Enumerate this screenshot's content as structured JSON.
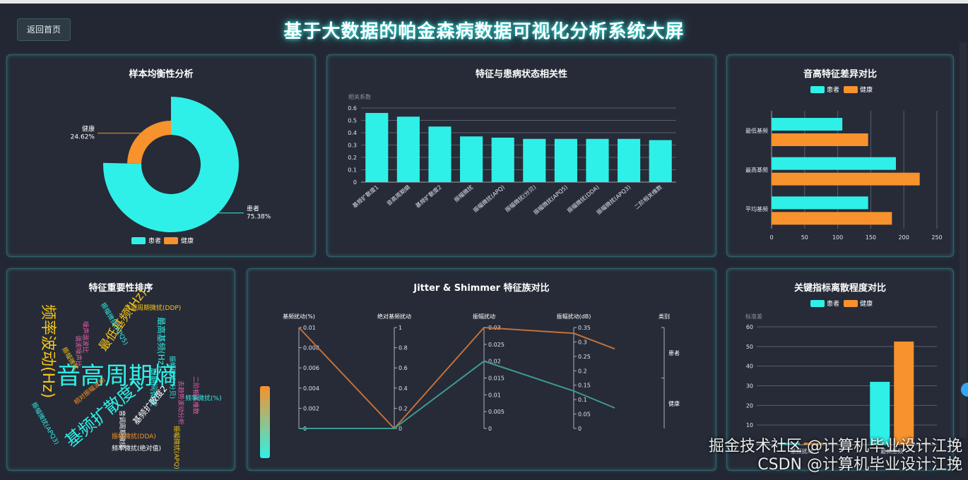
{
  "header": {
    "back_label": "返回首页",
    "title": "基于大数据的帕金森病数据可视化分析系统大屏"
  },
  "colors": {
    "patient": "#2ff0e8",
    "healthy": "#f7922c",
    "bg": "#232733",
    "panel_border": "#356268"
  },
  "panels": {
    "balance": {
      "title": "样本均衡性分析"
    },
    "corr": {
      "title": "特征与患病状态相关性"
    },
    "pitch": {
      "title": "音高特征差异对比"
    },
    "importance": {
      "title": "特征重要性排序"
    },
    "parallel": {
      "title": "Jitter & Shimmer 特征族对比"
    },
    "dispersion": {
      "title": "关键指标离散程度对比"
    }
  },
  "chart_data": [
    {
      "id": "balance",
      "type": "pie",
      "slices": [
        {
          "name": "患者",
          "percent": "75.38%",
          "value": 75.38
        },
        {
          "name": "健康",
          "percent": "24.62%",
          "value": 24.62
        }
      ],
      "legend": [
        "患者",
        "健康"
      ]
    },
    {
      "id": "corr",
      "type": "bar",
      "ylabel": "相关系数",
      "yticks": [
        "0",
        "0.1",
        "0.2",
        "0.3",
        "0.4",
        "0.5",
        "0.6"
      ],
      "ylim": [
        0,
        0.6
      ],
      "categories": [
        "基频扩散度1",
        "音高周期熵",
        "基频扩散度2",
        "振幅微扰",
        "振幅微扰(APQ)",
        "振幅微扰(分贝)",
        "振幅微扰(APQ5)",
        "振幅微扰(DDA)",
        "振幅微扰(APQ3)",
        "二阶相关维数"
      ],
      "values": [
        0.56,
        0.53,
        0.45,
        0.37,
        0.36,
        0.35,
        0.35,
        0.35,
        0.35,
        0.34
      ]
    },
    {
      "id": "pitch",
      "type": "bar",
      "orientation": "horizontal",
      "legend": [
        "患者",
        "健康"
      ],
      "categories": [
        "最低基频",
        "最高基频",
        "平均基频"
      ],
      "xticks": [
        "0",
        "50",
        "100",
        "150",
        "200",
        "250"
      ],
      "xlim": [
        0,
        250
      ],
      "series": [
        {
          "name": "患者",
          "values": [
            107,
            188,
            146
          ]
        },
        {
          "name": "健康",
          "values": [
            146,
            224,
            182
          ]
        }
      ]
    },
    {
      "id": "importance",
      "type": "wordcloud",
      "words": [
        {
          "text": "音高周期熵",
          "color": "#2ff0e8"
        },
        {
          "text": "基频扩散度1",
          "color": "#2ff0e8"
        },
        {
          "text": "频率波动(Hz)",
          "color": "#f5c518"
        },
        {
          "text": "最低基频(Hz)",
          "color": "#f5c518"
        },
        {
          "text": "音调周期微扰(DDP)",
          "color": "#f5c518"
        },
        {
          "text": "振幅微扰(APQ5)",
          "color": "#2ff0e8"
        },
        {
          "text": "最高基频(Hz)",
          "color": "#2ff0e8"
        },
        {
          "text": "周期间微扰",
          "color": "#2ff0e8"
        },
        {
          "text": "振幅微扰(分贝)",
          "color": "#2ff0e8"
        },
        {
          "text": "二阶相关维数",
          "color": "#e85fa8"
        },
        {
          "text": "噪声谐波比",
          "color": "#e85fa8"
        },
        {
          "text": "谐波噪声比",
          "color": "#e85fa8"
        },
        {
          "text": "振幅微扰",
          "color": "#f5c518"
        },
        {
          "text": "基频扩散度2",
          "color": "#ffffff"
        },
        {
          "text": "音调周期微扰",
          "color": "#ffffff"
        },
        {
          "text": "振幅微扰(APQ)",
          "color": "#f5c518"
        },
        {
          "text": "去趋势波动分析",
          "color": "#e85fa8"
        },
        {
          "text": "频率微扰(%)",
          "color": "#2ff0e8"
        },
        {
          "text": "相对振幅波动",
          "color": "#f7922c"
        },
        {
          "text": "振幅微扰(APQ3)",
          "color": "#2ff0e8"
        },
        {
          "text": "振幅微扰(DDA)",
          "color": "#f7922c"
        },
        {
          "text": "频率微扰(绝对值)",
          "color": "#ffffff"
        }
      ]
    },
    {
      "id": "parallel",
      "type": "line",
      "axes": [
        {
          "name": "基频扰动(%)",
          "ticks": [
            "0",
            "0.002",
            "0.004",
            "0.006",
            "0.008",
            "0.01"
          ]
        },
        {
          "name": "绝对基频扰动",
          "ticks": [
            "0",
            "0.2",
            "0.4",
            "0.6",
            "0.8",
            "1"
          ]
        },
        {
          "name": "振幅扰动",
          "ticks": [
            "0",
            "0.005",
            "0.01",
            "0.015",
            "0.02",
            "0.025",
            "0.03"
          ]
        },
        {
          "name": "振幅扰动(dB)",
          "ticks": [
            "0",
            "0.05",
            "0.1",
            "0.15",
            "0.2",
            "0.25",
            "0.3",
            "0.35"
          ]
        },
        {
          "name": "类别",
          "ticks": [
            "患者",
            "健康"
          ]
        }
      ],
      "series": [
        {
          "name": "患者",
          "values": [
            0.01,
            0,
            0.03,
            0.33
          ]
        },
        {
          "name": "健康",
          "values": [
            0,
            0,
            0.02,
            0.13
          ]
        }
      ]
    },
    {
      "id": "dispersion",
      "type": "bar",
      "legend": [
        "患者",
        "健康"
      ],
      "ylabel": "标准差",
      "yticks": [
        "0",
        "10",
        "20",
        "30",
        "40",
        "50",
        "60"
      ],
      "ylim": [
        0,
        60
      ],
      "categories": [
        "基频扰动",
        "最高基频"
      ],
      "series": [
        {
          "name": "患者",
          "values": [
            1,
            32
          ]
        },
        {
          "name": "健康",
          "values": [
            1,
            52.5
          ]
        }
      ]
    }
  ],
  "watermark": {
    "line1": "掘金技术社区 @计算机毕业设计江挽",
    "line2": "CSDN @计算机毕业设计江挽"
  }
}
